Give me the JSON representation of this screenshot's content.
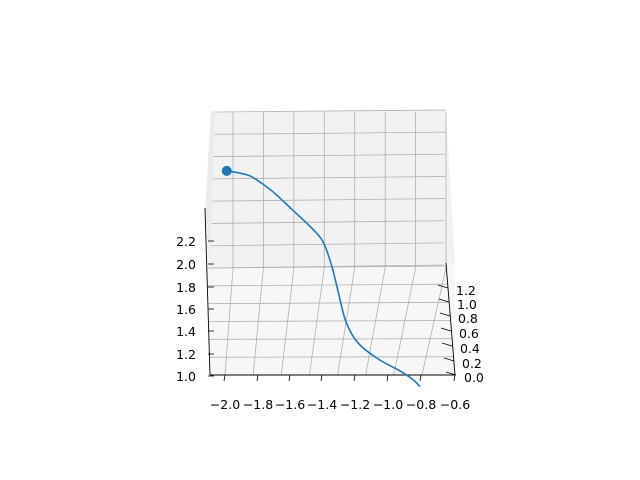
{
  "chart_data": {
    "type": "line",
    "projection": "3d",
    "title": "",
    "xlabel": "",
    "ylabel": "",
    "zlabel": "",
    "grid": true,
    "colors": {
      "line": "#1f77b4",
      "pane": "#f2f2f2",
      "grid": "#b0b0b0",
      "axis": "#000000"
    },
    "x_ticks": [
      "−2.0",
      "−1.8",
      "−1.6",
      "−1.4",
      "−1.2",
      "−1.0",
      "−0.8",
      "−0.6"
    ],
    "y_ticks": [
      "0.0",
      "0.2",
      "0.4",
      "0.6",
      "0.8",
      "1.0",
      "1.2"
    ],
    "z_ticks": [
      "1.0",
      "1.2",
      "1.4",
      "1.6",
      "1.8",
      "2.0",
      "2.2"
    ],
    "xlim": [
      -2.0,
      -0.6
    ],
    "ylim": [
      0.0,
      1.2
    ],
    "zlim": [
      1.0,
      2.3
    ],
    "series": [
      {
        "marker_end": "start",
        "points": [
          {
            "x": -1.93,
            "y": 1.3,
            "z": 2.3
          },
          {
            "x": -1.87,
            "y": 1.18,
            "z": 2.28
          },
          {
            "x": -1.8,
            "y": 1.05,
            "z": 2.25
          },
          {
            "x": -1.74,
            "y": 0.92,
            "z": 2.2
          },
          {
            "x": -1.66,
            "y": 0.82,
            "z": 2.13
          },
          {
            "x": -1.56,
            "y": 0.74,
            "z": 2.03
          },
          {
            "x": -1.46,
            "y": 0.66,
            "z": 1.93
          },
          {
            "x": -1.38,
            "y": 0.57,
            "z": 1.83
          },
          {
            "x": -1.33,
            "y": 0.47,
            "z": 1.68
          },
          {
            "x": -1.29,
            "y": 0.37,
            "z": 1.5
          },
          {
            "x": -1.25,
            "y": 0.27,
            "z": 1.33
          },
          {
            "x": -1.18,
            "y": 0.18,
            "z": 1.2
          },
          {
            "x": -1.06,
            "y": 0.1,
            "z": 1.1
          },
          {
            "x": -0.94,
            "y": 0.03,
            "z": 1.03
          },
          {
            "x": -0.86,
            "y": -0.05,
            "z": 0.97
          },
          {
            "x": -0.82,
            "y": -0.15,
            "z": 0.92
          }
        ]
      }
    ]
  }
}
